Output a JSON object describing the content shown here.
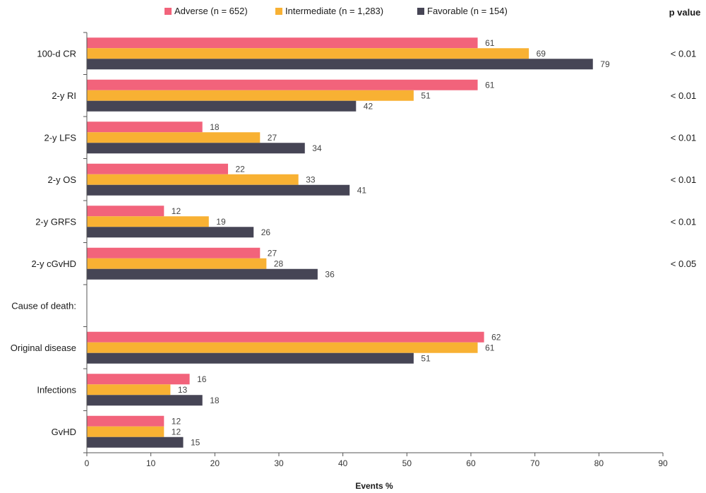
{
  "chart_data": {
    "type": "bar",
    "orientation": "horizontal",
    "xlabel": "Events %",
    "xlim": [
      0,
      90
    ],
    "xticks": [
      0,
      10,
      20,
      30,
      40,
      50,
      60,
      70,
      80,
      90
    ],
    "pvalue_header": "p value",
    "legend_position": "top",
    "colors": {
      "adverse": "#f2637b",
      "intermediate": "#f8b133",
      "favorable": "#464555"
    },
    "series": [
      {
        "key": "adverse",
        "name": "Adverse (n = 652)"
      },
      {
        "key": "intermediate",
        "name": "Intermediate (n = 1,283)"
      },
      {
        "key": "favorable",
        "name": "Favorable (n = 154)"
      }
    ],
    "rows": [
      {
        "label": "100-d CR",
        "values": [
          61,
          69,
          79
        ],
        "pvalue": "< 0.01"
      },
      {
        "label": "2-y RI",
        "values": [
          61,
          51,
          42
        ],
        "pvalue": "< 0.01"
      },
      {
        "label": "2-y LFS",
        "values": [
          18,
          27,
          34
        ],
        "pvalue": "< 0.01"
      },
      {
        "label": "2-y OS",
        "values": [
          22,
          33,
          41
        ],
        "pvalue": "< 0.01"
      },
      {
        "label": "2-y GRFS",
        "values": [
          12,
          19,
          26
        ],
        "pvalue": "< 0.01"
      },
      {
        "label": "2-y cGvHD",
        "values": [
          27,
          28,
          36
        ],
        "pvalue": "< 0.05"
      },
      {
        "label": "Cause of death:",
        "values": [],
        "pvalue": ""
      },
      {
        "label": "Original disease",
        "values": [
          62,
          61,
          51
        ],
        "pvalue": ""
      },
      {
        "label": "Infections",
        "values": [
          16,
          13,
          18
        ],
        "pvalue": ""
      },
      {
        "label": "GvHD",
        "values": [
          12,
          12,
          15
        ],
        "pvalue": ""
      }
    ]
  }
}
